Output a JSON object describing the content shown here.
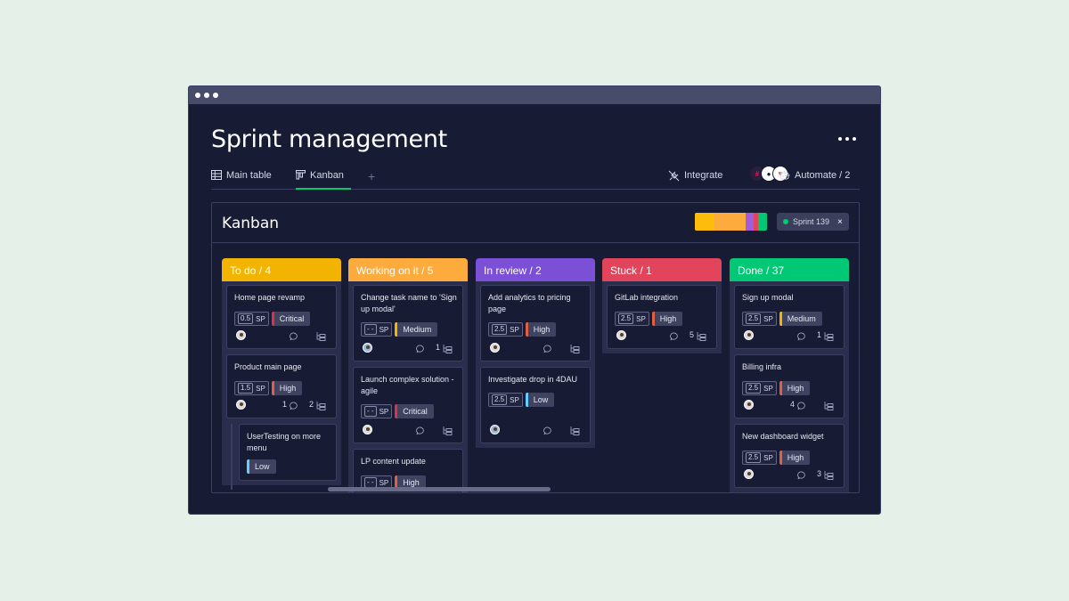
{
  "page": {
    "title": "Sprint management"
  },
  "tabs": [
    {
      "label": "Main table"
    },
    {
      "label": "Kanban"
    }
  ],
  "tab_add": "+",
  "toolbar": {
    "integrate": "Integrate",
    "automate": "Automate / 2"
  },
  "board": {
    "title": "Kanban",
    "sprint": "Sprint 139",
    "sprint_close": "×"
  },
  "status_bar": [
    {
      "color": "#fdbc0c",
      "fraction": 0.27
    },
    {
      "color": "#fdab3d",
      "fraction": 0.44
    },
    {
      "color": "#a25ddc",
      "fraction": 0.1
    },
    {
      "color": "#e2445c",
      "fraction": 0.07
    },
    {
      "color": "#00c875",
      "fraction": 0.12
    }
  ],
  "columns": [
    {
      "label": "To do / 4",
      "color": "#f2b400",
      "cards": [
        {
          "title": "Home page revamp",
          "sp": "0.5",
          "sp_unit": "SP",
          "priority": "Critical",
          "avatar": "grey",
          "comments": "",
          "subitems": ""
        },
        {
          "title": "Product main page",
          "sp": "1.5",
          "sp_unit": "SP",
          "priority": "High",
          "avatar": "grey",
          "comments": "1",
          "subitems": "2"
        }
      ],
      "subcards": [
        {
          "title": "UserTesting on more menu",
          "priority": "Low"
        }
      ]
    },
    {
      "label": "Working on it / 5",
      "color": "#fdab3d",
      "cards": [
        {
          "title": "Change task name to 'Sign up modal'",
          "sp": "- -",
          "sp_unit": "SP",
          "priority": "Medium",
          "avatar": "blue",
          "comments": "",
          "subitems": "1"
        },
        {
          "title": "Launch complex solution - agile",
          "sp": "- -",
          "sp_unit": "SP",
          "priority": "Critical",
          "avatar": "grey",
          "comments": "",
          "subitems": ""
        },
        {
          "title": "LP content update",
          "sp": "- -",
          "sp_unit": "SP",
          "priority": "High",
          "avatar": "",
          "comments": "",
          "subitems": ""
        }
      ]
    },
    {
      "label": "In review / 2",
      "color": "#7b4fd6",
      "cards": [
        {
          "title": "Add analytics to pricing page",
          "sp": "2.5",
          "sp_unit": "SP",
          "priority": "High",
          "avatar": "grey",
          "comments": "",
          "subitems": ""
        },
        {
          "title": "Investigate drop in 4DAU",
          "sp": "2.5",
          "sp_unit": "SP",
          "priority": "Low",
          "avatar": "blue",
          "comments": "",
          "subitems": ""
        }
      ]
    },
    {
      "label": "Stuck / 1",
      "color": "#e2445c",
      "cards": [
        {
          "title": "GitLab integration",
          "sp": "2.5",
          "sp_unit": "SP",
          "priority": "High",
          "avatar": "grey",
          "comments": "",
          "subitems": "5"
        }
      ]
    },
    {
      "label": "Done  / 37",
      "color": "#00c875",
      "cards": [
        {
          "title": "Sign up modal",
          "sp": "2.5",
          "sp_unit": "SP",
          "priority": "Medium",
          "avatar": "grey",
          "comments": "",
          "subitems": "1"
        },
        {
          "title": "Billing infra",
          "sp": "2.5",
          "sp_unit": "SP",
          "priority": "High",
          "avatar": "grey",
          "comments": "4",
          "subitems": ""
        },
        {
          "title": "New dashboard widget",
          "sp": "2.5",
          "sp_unit": "SP",
          "priority": "High",
          "avatar": "grey",
          "comments": "",
          "subitems": "3"
        }
      ]
    }
  ],
  "priority_colors": {
    "Critical": "#df2f4a",
    "High": "#e2603f",
    "Medium": "#f2b400",
    "Low": "#66ccff"
  },
  "icons": {
    "main_table": "table-icon",
    "kanban": "kanban-icon",
    "integrate": "plug-icon",
    "automate": "robot-icon",
    "comment": "comment-icon",
    "subitems": "subitems-icon"
  }
}
